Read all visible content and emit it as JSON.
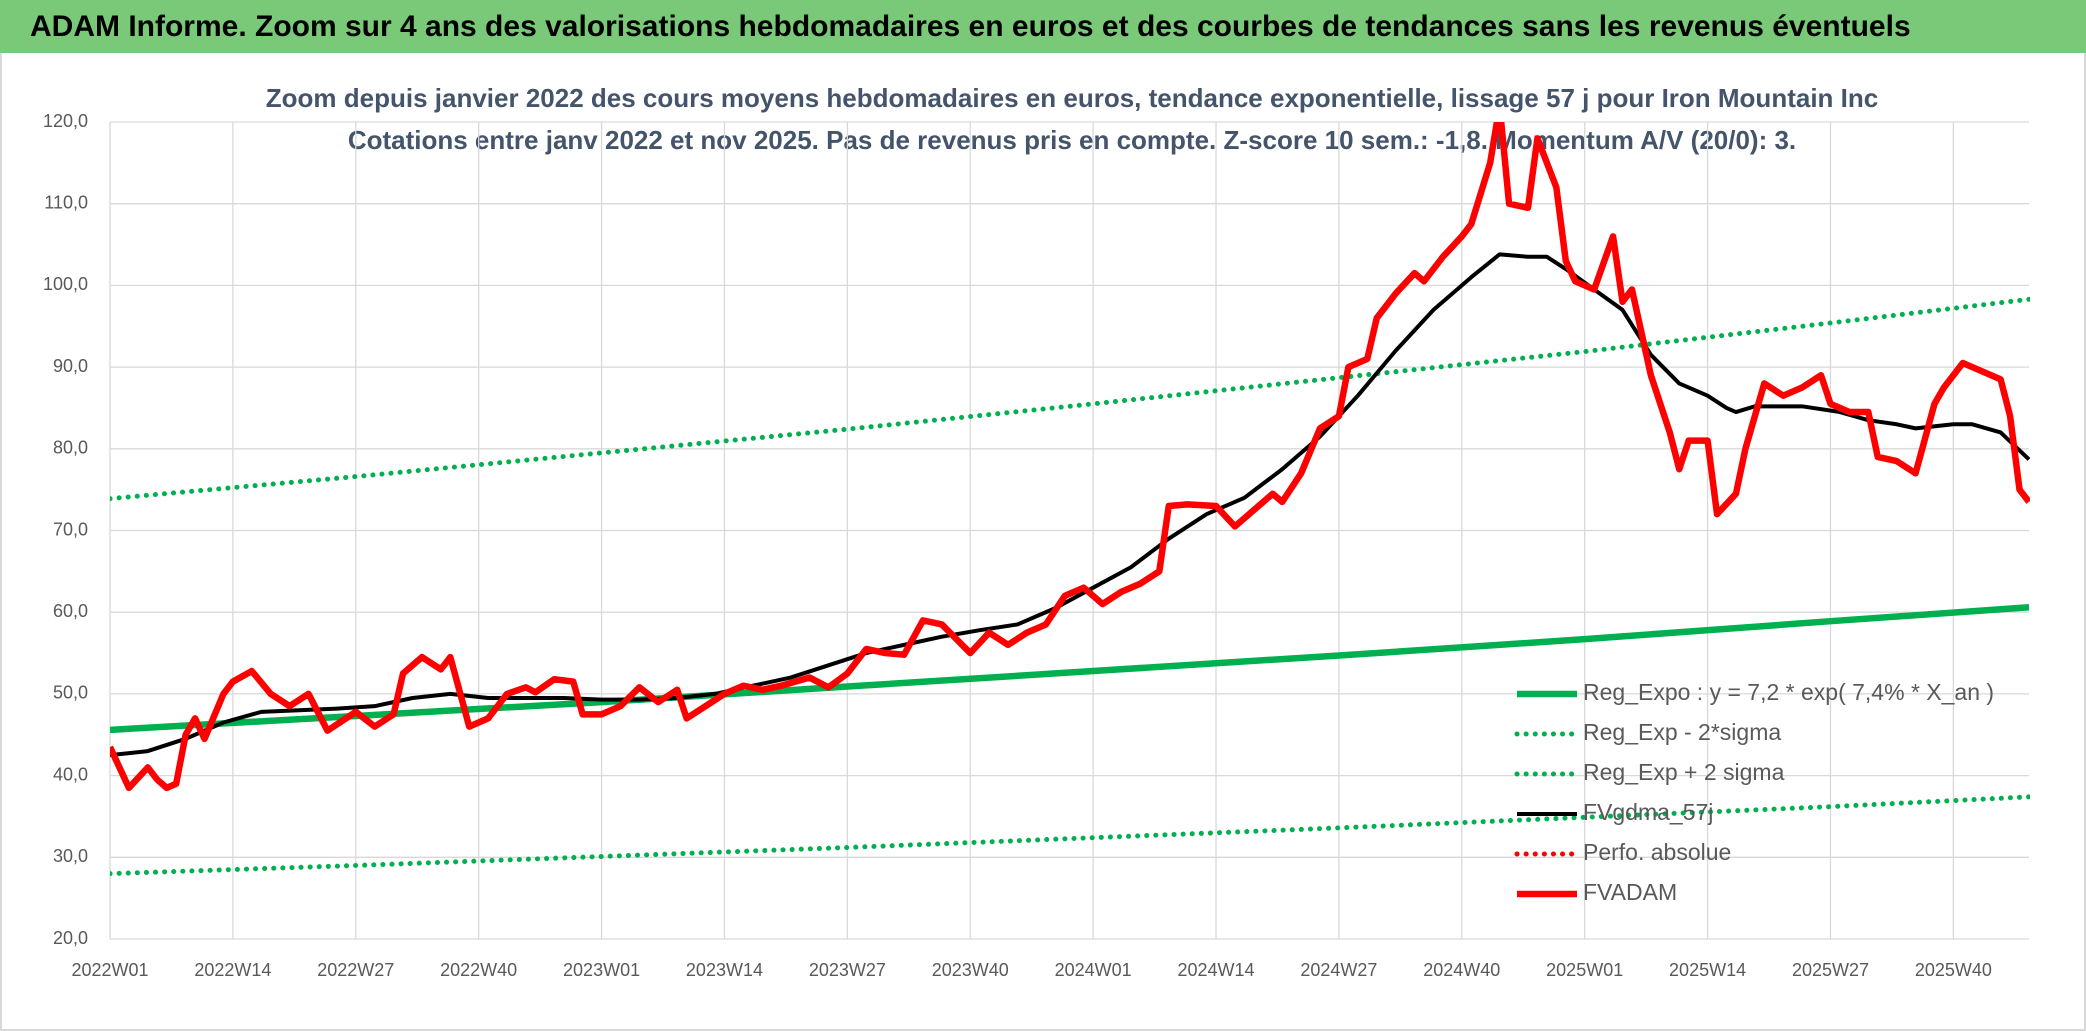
{
  "header": {
    "title": "ADAM Informe. Zoom sur 4 ans des valorisations hebdomadaires en euros et des courbes de tendances sans les revenus éventuels"
  },
  "chart_data": {
    "type": "line",
    "title": "Zoom depuis janvier 2022 des cours moyens hebdomadaires en euros, tendance exponentielle, lissage 57 j pour Iron Mountain Inc",
    "subtitle": "Cotations entre janv 2022 et nov 2025. Pas de revenus pris en compte. Z-score 10 sem.: -1,8. Momentum A/V (20/0): 3.",
    "xlim": [
      0,
      203
    ],
    "xticks": [
      {
        "value": 0,
        "label": "2022W01"
      },
      {
        "value": 13,
        "label": "2022W14"
      },
      {
        "value": 26,
        "label": "2022W27"
      },
      {
        "value": 39,
        "label": "2022W40"
      },
      {
        "value": 52,
        "label": "2023W01"
      },
      {
        "value": 65,
        "label": "2023W14"
      },
      {
        "value": 78,
        "label": "2023W27"
      },
      {
        "value": 91,
        "label": "2023W40"
      },
      {
        "value": 104,
        "label": "2024W01"
      },
      {
        "value": 117,
        "label": "2024W14"
      },
      {
        "value": 130,
        "label": "2024W27"
      },
      {
        "value": 143,
        "label": "2024W40"
      },
      {
        "value": 156,
        "label": "2025W01"
      },
      {
        "value": 169,
        "label": "2025W14"
      },
      {
        "value": 182,
        "label": "2025W27"
      },
      {
        "value": 195,
        "label": "2025W40"
      }
    ],
    "ylim": [
      20,
      120
    ],
    "yticks": [
      {
        "value": 20,
        "label": "20,0"
      },
      {
        "value": 30,
        "label": "30,0"
      },
      {
        "value": 40,
        "label": "40,0"
      },
      {
        "value": 50,
        "label": "50,0"
      },
      {
        "value": 60,
        "label": "60,0"
      },
      {
        "value": 70,
        "label": "70,0"
      },
      {
        "value": 80,
        "label": "80,0"
      },
      {
        "value": 90,
        "label": "90,0"
      },
      {
        "value": 100,
        "label": "100,0"
      },
      {
        "value": 110,
        "label": "110,0"
      },
      {
        "value": 120,
        "label": "120,0"
      }
    ],
    "grid": true,
    "legend": "lower-right",
    "series": [
      {
        "name": "Reg_Expo : y = 7,2 * exp( 7,4% *  X_an )",
        "color": "#00b050",
        "style": "solid",
        "x": [
          0,
          26,
          52,
          78,
          104,
          130,
          156,
          182,
          203
        ],
        "values": [
          45.6,
          47.3,
          49.0,
          50.9,
          52.8,
          54.7,
          56.7,
          58.9,
          60.6
        ]
      },
      {
        "name": "Reg_Exp - 2*sigma",
        "color": "#00b050",
        "style": "dotted",
        "x": [
          0,
          26,
          52,
          78,
          104,
          130,
          156,
          182,
          203
        ],
        "values": [
          28.0,
          29.0,
          30.1,
          31.2,
          32.4,
          33.6,
          34.9,
          36.2,
          37.4
        ]
      },
      {
        "name": "Reg_Exp + 2 sigma",
        "color": "#00b050",
        "style": "dotted",
        "x": [
          0,
          26,
          52,
          78,
          104,
          130,
          156,
          182,
          203
        ],
        "values": [
          73.9,
          76.6,
          79.5,
          82.4,
          85.5,
          88.7,
          91.9,
          95.4,
          98.3
        ]
      },
      {
        "name": "FVgdma_57j",
        "color": "#000000",
        "style": "thin",
        "x": [
          0,
          4,
          8,
          12,
          16,
          20,
          24,
          28,
          32,
          36,
          40,
          44,
          48,
          52,
          56,
          60,
          64,
          68,
          72,
          76,
          80,
          84,
          88,
          92,
          96,
          100,
          104,
          108,
          112,
          116,
          120,
          124,
          128,
          132,
          136,
          140,
          144,
          147,
          150,
          152,
          154,
          157,
          160,
          163,
          166,
          169,
          171,
          172,
          174,
          179,
          183,
          186,
          189,
          191,
          195,
          197,
          200,
          203
        ],
        "values": [
          42.5,
          43,
          44.5,
          46.5,
          47.8,
          48,
          48.2,
          48.5,
          49.5,
          50,
          49.5,
          49.5,
          49.5,
          49.3,
          49.3,
          49.5,
          50,
          51,
          52,
          53.5,
          55,
          56,
          57,
          57.8,
          58.5,
          60.5,
          63,
          65.5,
          69,
          72,
          74,
          77.5,
          81.5,
          86.5,
          92,
          97,
          101,
          103.8,
          103.5,
          103.5,
          102,
          99.5,
          97,
          91.5,
          88,
          86.5,
          85,
          84.5,
          85.2,
          85.2,
          84.5,
          83.5,
          83,
          82.5,
          83,
          83,
          82,
          78.7
        ]
      },
      {
        "name": "Perfo. absolue",
        "color": "#ff0000",
        "style": "dotted",
        "x": [],
        "values": []
      },
      {
        "name": "FVADAM",
        "color": "#ff0000",
        "style": "solid",
        "x": [
          0,
          2,
          4,
          5,
          6,
          7,
          8,
          9,
          10,
          12,
          13,
          15,
          17,
          19,
          21,
          23,
          26,
          28,
          30,
          31,
          33,
          35,
          36,
          38,
          40,
          42,
          44,
          45,
          47,
          49,
          50,
          52,
          54,
          56,
          58,
          60,
          61,
          63,
          65,
          67,
          69,
          71,
          74,
          76,
          78,
          80,
          82,
          84,
          86,
          88,
          91,
          93,
          95,
          97,
          99,
          101,
          103,
          105,
          107,
          109,
          111,
          112,
          114,
          117,
          119,
          121,
          123,
          124,
          126,
          128,
          130,
          131,
          133,
          134,
          136,
          138,
          139,
          141,
          143,
          144,
          146,
          147,
          148,
          150,
          151,
          153,
          154,
          155,
          157,
          159,
          160,
          161,
          163,
          165,
          166,
          167,
          169,
          170,
          172,
          173,
          175,
          177,
          179,
          181,
          182,
          184,
          186,
          187,
          189,
          191,
          193,
          194,
          196,
          198,
          200,
          201,
          202,
          203
        ],
        "values": [
          43.5,
          38.5,
          41,
          39.5,
          38.5,
          39,
          45,
          47,
          44.5,
          50,
          51.5,
          52.8,
          50,
          48.5,
          50,
          45.5,
          47.8,
          46,
          47.5,
          52.5,
          54.5,
          53,
          54.5,
          46,
          47,
          50,
          50.8,
          50.2,
          51.8,
          51.5,
          47.5,
          47.5,
          48.5,
          50.8,
          49,
          50.5,
          47,
          48.5,
          50,
          51,
          50.5,
          51,
          52,
          50.8,
          52.5,
          55.5,
          55,
          54.8,
          59,
          58.5,
          55,
          57.5,
          56,
          57.5,
          58.5,
          62,
          63,
          61,
          62.5,
          63.5,
          65,
          73,
          73.2,
          73,
          70.5,
          72.5,
          74.5,
          73.5,
          77,
          82.5,
          84,
          90,
          91,
          96,
          99,
          101.5,
          100.5,
          103.5,
          106,
          107.5,
          115,
          122,
          110,
          109.5,
          118,
          112,
          103,
          100.5,
          99.5,
          106,
          98,
          99.5,
          89,
          82,
          77.5,
          81,
          81,
          72,
          74.5,
          80,
          88,
          86.5,
          87.5,
          89,
          85.5,
          84.5,
          84.5,
          79,
          78.5,
          77,
          85.5,
          87.5,
          90.5,
          89.5,
          88.5,
          84,
          75,
          73.5
        ]
      }
    ]
  }
}
